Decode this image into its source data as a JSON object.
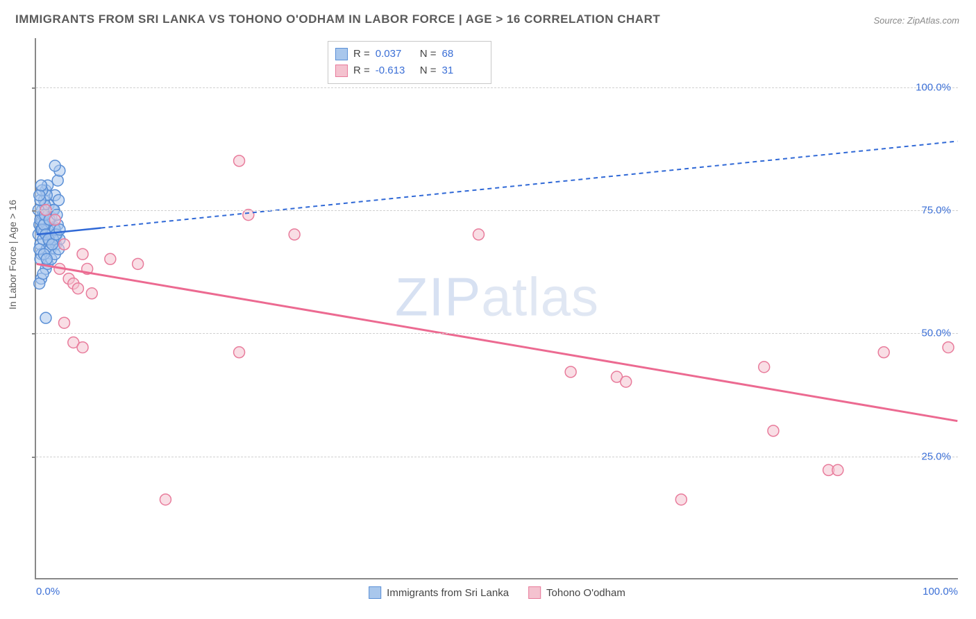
{
  "title": "IMMIGRANTS FROM SRI LANKA VS TOHONO O'ODHAM IN LABOR FORCE | AGE > 16 CORRELATION CHART",
  "source": "Source: ZipAtlas.com",
  "watermark_bold": "ZIP",
  "watermark_thin": "atlas",
  "ylabel": "In Labor Force | Age > 16",
  "chart": {
    "type": "scatter",
    "xlim": [
      0,
      100
    ],
    "ylim": [
      0,
      110
    ],
    "x_ticks": [
      {
        "pos": 0,
        "label": "0.0%"
      },
      {
        "pos": 100,
        "label": "100.0%"
      }
    ],
    "y_ticks": [
      {
        "pos": 25,
        "label": "25.0%"
      },
      {
        "pos": 50,
        "label": "50.0%"
      },
      {
        "pos": 75,
        "label": "75.0%"
      },
      {
        "pos": 100,
        "label": "100.0%"
      }
    ],
    "grid_color": "#d0d0d0",
    "background_color": "#ffffff",
    "axis_color": "#888888",
    "tick_label_color": "#3b6fd6",
    "marker_radius": 8,
    "marker_stroke_width": 1.5,
    "series": [
      {
        "name": "Immigrants from Sri Lanka",
        "fill": "#a9c7ec",
        "stroke": "#5a8fd6",
        "fill_opacity": 0.55,
        "R": "0.037",
        "N": "68",
        "trend": {
          "x1": 0,
          "y1": 70,
          "x2": 100,
          "y2": 89,
          "solid_until_x": 7,
          "color": "#2f68d6",
          "width": 2.5,
          "dash": "6,5"
        },
        "points": [
          [
            0.2,
            70
          ],
          [
            0.3,
            72
          ],
          [
            0.4,
            68
          ],
          [
            0.5,
            71
          ],
          [
            0.6,
            73
          ],
          [
            0.7,
            69
          ],
          [
            0.8,
            70.5
          ],
          [
            0.9,
            72.5
          ],
          [
            1.0,
            74
          ],
          [
            1.1,
            67
          ],
          [
            1.2,
            71
          ],
          [
            1.3,
            76
          ],
          [
            1.4,
            68.5
          ],
          [
            1.5,
            70
          ],
          [
            1.6,
            73.5
          ],
          [
            1.7,
            69.5
          ],
          [
            1.8,
            75
          ],
          [
            1.9,
            71.5
          ],
          [
            2.0,
            78
          ],
          [
            2.1,
            68
          ],
          [
            2.2,
            70
          ],
          [
            2.3,
            72
          ],
          [
            2.4,
            77
          ],
          [
            2.5,
            69
          ],
          [
            0.5,
            66
          ],
          [
            0.6,
            75
          ],
          [
            0.8,
            77
          ],
          [
            1.0,
            79
          ],
          [
            1.2,
            80
          ],
          [
            0.4,
            65
          ],
          [
            0.3,
            67
          ],
          [
            0.7,
            74
          ],
          [
            0.9,
            76
          ],
          [
            1.1,
            78
          ],
          [
            1.5,
            67
          ],
          [
            1.8,
            69
          ],
          [
            2.0,
            71
          ],
          [
            2.3,
            81
          ],
          [
            2.5,
            83
          ],
          [
            1.0,
            63
          ],
          [
            0.5,
            61
          ],
          [
            0.3,
            60
          ],
          [
            0.7,
            62
          ],
          [
            1.2,
            64
          ],
          [
            1.6,
            65
          ],
          [
            2.0,
            66
          ],
          [
            2.4,
            67
          ],
          [
            0.4,
            73
          ],
          [
            0.6,
            71
          ],
          [
            0.8,
            72
          ],
          [
            1.0,
            70
          ],
          [
            1.3,
            69
          ],
          [
            1.7,
            68
          ],
          [
            2.1,
            70
          ],
          [
            2.5,
            71
          ],
          [
            0.2,
            75
          ],
          [
            0.4,
            77
          ],
          [
            0.6,
            79
          ],
          [
            0.9,
            74
          ],
          [
            1.4,
            73
          ],
          [
            1.9,
            75
          ],
          [
            2.2,
            74
          ],
          [
            1.0,
            53
          ],
          [
            2.0,
            84
          ],
          [
            0.3,
            78
          ],
          [
            0.5,
            80
          ],
          [
            0.8,
            66
          ],
          [
            1.1,
            65
          ]
        ]
      },
      {
        "name": "Tohono O'odham",
        "fill": "#f4c2cf",
        "stroke": "#e87b9b",
        "fill_opacity": 0.55,
        "R": "-0.613",
        "N": "31",
        "trend": {
          "x1": 0,
          "y1": 64,
          "x2": 100,
          "y2": 32,
          "solid_until_x": 100,
          "color": "#ec6a91",
          "width": 3,
          "dash": null
        },
        "points": [
          [
            1,
            75
          ],
          [
            2,
            73
          ],
          [
            2.5,
            63
          ],
          [
            3,
            68
          ],
          [
            3.5,
            61
          ],
          [
            4,
            60
          ],
          [
            4.5,
            59
          ],
          [
            5,
            66
          ],
          [
            5.5,
            63
          ],
          [
            6,
            58
          ],
          [
            8,
            65
          ],
          [
            11,
            64
          ],
          [
            3,
            52
          ],
          [
            4,
            48
          ],
          [
            5,
            47
          ],
          [
            14,
            16
          ],
          [
            22,
            85
          ],
          [
            23,
            74
          ],
          [
            22,
            46
          ],
          [
            28,
            70
          ],
          [
            48,
            70
          ],
          [
            58,
            42
          ],
          [
            63,
            41
          ],
          [
            64,
            40
          ],
          [
            70,
            16
          ],
          [
            79,
            43
          ],
          [
            80,
            30
          ],
          [
            86,
            22
          ],
          [
            87,
            22
          ],
          [
            92,
            46
          ],
          [
            99,
            47
          ]
        ]
      }
    ]
  },
  "legend": {
    "series1": "Immigrants from Sri Lanka",
    "series2": "Tohono O'odham"
  },
  "stats_labels": {
    "R": "R =",
    "N": "N ="
  }
}
